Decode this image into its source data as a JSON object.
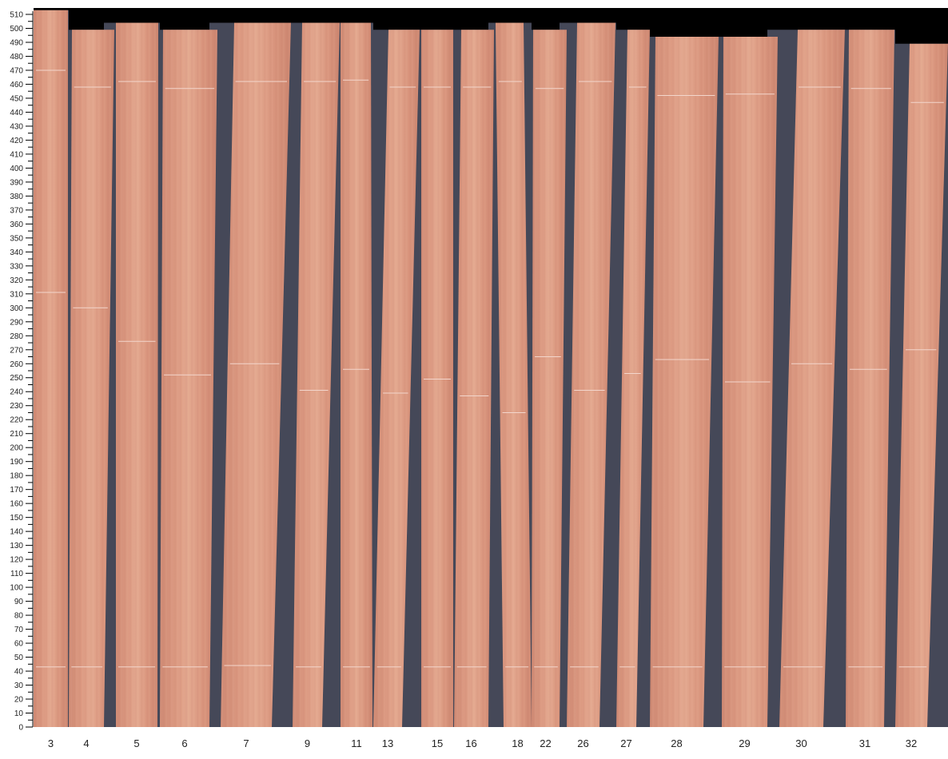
{
  "axis": {
    "min": 0,
    "max": 510,
    "major_step": 10,
    "minor_step": 5
  },
  "colors": {
    "wood": "#d9937d",
    "wood_light": "#e6ad95",
    "wood_dark": "#c77f6a",
    "gap": "#454858",
    "top_background": "#000000",
    "cut_line": "#f3d6cc"
  },
  "strips": [
    {
      "label": "3",
      "length": 513,
      "marks": [
        43,
        311,
        470
      ]
    },
    {
      "label": "4",
      "length": 499,
      "marks": [
        43,
        300,
        458
      ]
    },
    {
      "label": "5",
      "length": 504,
      "marks": [
        43,
        276,
        462
      ]
    },
    {
      "label": "6",
      "length": 499,
      "marks": [
        43,
        252,
        457
      ]
    },
    {
      "label": "7",
      "length": 504,
      "marks": [
        44,
        260,
        462
      ]
    },
    {
      "label": "9",
      "length": 504,
      "marks": [
        43,
        241,
        462
      ]
    },
    {
      "label": "11",
      "length": 504,
      "marks": [
        43,
        256,
        463
      ]
    },
    {
      "label": "13",
      "length": 499,
      "marks": [
        43,
        239,
        458
      ]
    },
    {
      "label": "15",
      "length": 499,
      "marks": [
        43,
        249,
        458
      ]
    },
    {
      "label": "16",
      "length": 499,
      "marks": [
        43,
        237,
        458
      ]
    },
    {
      "label": "18",
      "length": 504,
      "marks": [
        43,
        225,
        462
      ]
    },
    {
      "label": "22",
      "length": 499,
      "marks": [
        43,
        265,
        457
      ]
    },
    {
      "label": "26",
      "length": 504,
      "marks": [
        43,
        241,
        462
      ]
    },
    {
      "label": "27",
      "length": 499,
      "marks": [
        43,
        253,
        458
      ]
    },
    {
      "label": "28",
      "length": 494,
      "marks": [
        43,
        263,
        452
      ]
    },
    {
      "label": "29",
      "length": 494,
      "marks": [
        43,
        247,
        453
      ]
    },
    {
      "label": "30",
      "length": 499,
      "marks": [
        43,
        260,
        458
      ]
    },
    {
      "label": "31",
      "length": 499,
      "marks": [
        43,
        256,
        457
      ]
    },
    {
      "label": "32",
      "length": 489,
      "marks": [
        43,
        270,
        447
      ]
    }
  ]
}
